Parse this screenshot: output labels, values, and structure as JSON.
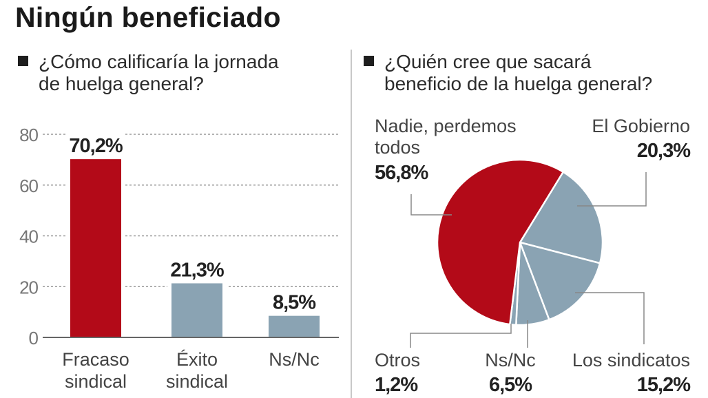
{
  "title": "Ningún beneficiado",
  "colors": {
    "accent": "#b30a18",
    "secondary": "#8aa3b3",
    "text": "#333333"
  },
  "chart_data": [
    {
      "type": "bar",
      "title": "¿Cómo calificaría la jornada de huelga general?",
      "title_lines": [
        "¿Cómo calificaría la jornada",
        "de huelga general?"
      ],
      "categories": [
        "Fracaso sindical",
        "Éxito sindical",
        "Ns/Nc"
      ],
      "category_lines": [
        [
          "Fracaso",
          "sindical"
        ],
        [
          "Éxito",
          "sindical"
        ],
        [
          "Ns/Nc"
        ]
      ],
      "values": [
        70.2,
        21.3,
        8.5
      ],
      "data_labels": [
        "70,2%",
        "21,3%",
        "8,5%"
      ],
      "bar_colors": [
        "#b30a18",
        "#8aa3b3",
        "#8aa3b3"
      ],
      "ylim": [
        0,
        80
      ],
      "yticks": [
        0,
        20,
        40,
        60,
        80
      ],
      "ytick_labels": [
        "0",
        "20",
        "40",
        "60",
        "80"
      ],
      "grid": true,
      "xlabel": "",
      "ylabel": ""
    },
    {
      "type": "pie",
      "title": "¿Quién cree que sacará beneficio de la huelga general?",
      "title_lines": [
        "¿Quién cree que sacará",
        "beneficio de la huelga general?"
      ],
      "slices": [
        {
          "name": "El Gobierno",
          "label_lines": [
            "El Gobierno"
          ],
          "value": 20.3,
          "value_label": "20,3%",
          "color": "#8aa3b3"
        },
        {
          "name": "Los sindicatos",
          "label_lines": [
            "Los sindicatos"
          ],
          "value": 15.2,
          "value_label": "15,2%",
          "color": "#8aa3b3"
        },
        {
          "name": "Ns/Nc",
          "label_lines": [
            "Ns/Nc"
          ],
          "value": 6.5,
          "value_label": "6,5%",
          "color": "#8aa3b3"
        },
        {
          "name": "Otros",
          "label_lines": [
            "Otros"
          ],
          "value": 1.2,
          "value_label": "1,2%",
          "color": "#8aa3b3"
        },
        {
          "name": "Nadie, perdemos todos",
          "label_lines": [
            "Nadie, perdemos",
            "todos"
          ],
          "value": 56.8,
          "value_label": "56,8%",
          "color": "#b30a18"
        }
      ]
    }
  ]
}
